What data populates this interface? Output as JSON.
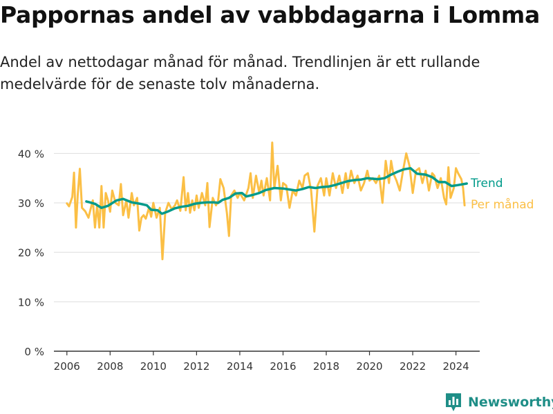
{
  "colors": {
    "trend": "#009a8a",
    "monthly": "#fbbf45",
    "grid": "#dddddd",
    "axis": "#333333",
    "brand": "#1f8e87"
  },
  "brand": {
    "name": "Newsworthy",
    "icon": "bar-chart-logo-icon"
  },
  "chart_data": {
    "type": "line",
    "title": "Pappornas andel av vabbdagarna i Lomma",
    "subtitle": "Andel av nettodagar månad för månad. Trendlinjen är ett rullande medelvärde för de senaste tolv månaderna.",
    "xlim": [
      2005.4,
      2025.1
    ],
    "ylim": [
      0,
      42
    ],
    "x_ticks": [
      2006,
      2008,
      2010,
      2012,
      2014,
      2016,
      2018,
      2020,
      2022,
      2024
    ],
    "x_tick_labels": [
      "2006",
      "2008",
      "2010",
      "2012",
      "2014",
      "2016",
      "2018",
      "2020",
      "2022",
      "2024"
    ],
    "y_ticks": [
      0,
      10,
      20,
      30,
      40
    ],
    "y_tick_labels": [
      "0 %",
      "10 %",
      "20 %",
      "30 %",
      "40 %"
    ],
    "grid": true,
    "series": [
      {
        "name": "Per månad",
        "color": "#fbbf45",
        "points": [
          [
            2006.0,
            29.9
          ],
          [
            2006.1,
            29.3
          ],
          [
            2006.25,
            31.2
          ],
          [
            2006.33,
            36.1
          ],
          [
            2006.42,
            25.0
          ],
          [
            2006.5,
            31.5
          ],
          [
            2006.6,
            36.9
          ],
          [
            2006.7,
            29.0
          ],
          [
            2006.85,
            28.3
          ],
          [
            2007.0,
            27.0
          ],
          [
            2007.1,
            28.8
          ],
          [
            2007.2,
            30.5
          ],
          [
            2007.3,
            25.0
          ],
          [
            2007.4,
            29.5
          ],
          [
            2007.5,
            25.0
          ],
          [
            2007.6,
            33.4
          ],
          [
            2007.7,
            25.0
          ],
          [
            2007.8,
            32.0
          ],
          [
            2007.9,
            30.5
          ],
          [
            2008.0,
            28.2
          ],
          [
            2008.1,
            32.5
          ],
          [
            2008.25,
            30.0
          ],
          [
            2008.4,
            29.5
          ],
          [
            2008.5,
            33.8
          ],
          [
            2008.6,
            27.5
          ],
          [
            2008.75,
            30.5
          ],
          [
            2008.85,
            27.0
          ],
          [
            2009.0,
            32.0
          ],
          [
            2009.1,
            29.5
          ],
          [
            2009.25,
            31.0
          ],
          [
            2009.35,
            24.4
          ],
          [
            2009.45,
            27.0
          ],
          [
            2009.55,
            27.5
          ],
          [
            2009.65,
            26.8
          ],
          [
            2009.8,
            29.0
          ],
          [
            2009.9,
            27.2
          ],
          [
            2010.0,
            30.0
          ],
          [
            2010.15,
            27.0
          ],
          [
            2010.3,
            29.0
          ],
          [
            2010.42,
            18.6
          ],
          [
            2010.55,
            28.0
          ],
          [
            2010.7,
            30.0
          ],
          [
            2010.85,
            28.7
          ],
          [
            2011.0,
            29.5
          ],
          [
            2011.1,
            30.5
          ],
          [
            2011.25,
            28.4
          ],
          [
            2011.4,
            35.2
          ],
          [
            2011.5,
            28.5
          ],
          [
            2011.6,
            32.0
          ],
          [
            2011.7,
            28.0
          ],
          [
            2011.8,
            30.5
          ],
          [
            2011.9,
            28.5
          ],
          [
            2012.0,
            31.5
          ],
          [
            2012.1,
            29.0
          ],
          [
            2012.25,
            32.0
          ],
          [
            2012.4,
            29.5
          ],
          [
            2012.5,
            34.0
          ],
          [
            2012.6,
            25.1
          ],
          [
            2012.75,
            31.0
          ],
          [
            2012.9,
            29.5
          ],
          [
            2013.0,
            30.5
          ],
          [
            2013.1,
            34.8
          ],
          [
            2013.25,
            33.0
          ],
          [
            2013.4,
            28.0
          ],
          [
            2013.5,
            23.3
          ],
          [
            2013.6,
            31.5
          ],
          [
            2013.75,
            32.5
          ],
          [
            2013.9,
            31.0
          ],
          [
            2014.0,
            32.0
          ],
          [
            2014.2,
            30.5
          ],
          [
            2014.4,
            33.0
          ],
          [
            2014.5,
            36.0
          ],
          [
            2014.6,
            31.0
          ],
          [
            2014.75,
            35.5
          ],
          [
            2014.9,
            32.0
          ],
          [
            2015.0,
            34.5
          ],
          [
            2015.1,
            31.5
          ],
          [
            2015.25,
            35.0
          ],
          [
            2015.4,
            30.5
          ],
          [
            2015.5,
            42.2
          ],
          [
            2015.6,
            33.0
          ],
          [
            2015.75,
            37.5
          ],
          [
            2015.9,
            30.5
          ],
          [
            2016.0,
            34.0
          ],
          [
            2016.15,
            33.5
          ],
          [
            2016.3,
            29.0
          ],
          [
            2016.45,
            32.5
          ],
          [
            2016.6,
            31.5
          ],
          [
            2016.75,
            34.5
          ],
          [
            2016.9,
            33.0
          ],
          [
            2017.0,
            35.5
          ],
          [
            2017.15,
            36.0
          ],
          [
            2017.3,
            32.5
          ],
          [
            2017.45,
            24.2
          ],
          [
            2017.6,
            33.5
          ],
          [
            2017.75,
            35.0
          ],
          [
            2017.9,
            31.5
          ],
          [
            2018.0,
            35.0
          ],
          [
            2018.15,
            31.5
          ],
          [
            2018.3,
            36.0
          ],
          [
            2018.45,
            33.0
          ],
          [
            2018.6,
            35.5
          ],
          [
            2018.75,
            32.0
          ],
          [
            2018.9,
            36.0
          ],
          [
            2019.0,
            33.0
          ],
          [
            2019.15,
            36.5
          ],
          [
            2019.3,
            34.0
          ],
          [
            2019.45,
            35.5
          ],
          [
            2019.6,
            32.5
          ],
          [
            2019.75,
            34.0
          ],
          [
            2019.9,
            36.5
          ],
          [
            2020.0,
            34.5
          ],
          [
            2020.15,
            35.0
          ],
          [
            2020.3,
            34.0
          ],
          [
            2020.45,
            35.5
          ],
          [
            2020.6,
            30.0
          ],
          [
            2020.75,
            38.5
          ],
          [
            2020.9,
            34.0
          ],
          [
            2021.0,
            38.5
          ],
          [
            2021.1,
            36.0
          ],
          [
            2021.25,
            34.5
          ],
          [
            2021.4,
            32.5
          ],
          [
            2021.55,
            36.5
          ],
          [
            2021.7,
            40.0
          ],
          [
            2021.85,
            37.5
          ],
          [
            2022.0,
            32.0
          ],
          [
            2022.15,
            36.5
          ],
          [
            2022.3,
            37.0
          ],
          [
            2022.45,
            34.0
          ],
          [
            2022.6,
            36.5
          ],
          [
            2022.75,
            32.5
          ],
          [
            2022.9,
            36.0
          ],
          [
            2023.0,
            35.5
          ],
          [
            2023.15,
            33.0
          ],
          [
            2023.3,
            35.0
          ],
          [
            2023.45,
            31.0
          ],
          [
            2023.55,
            29.7
          ],
          [
            2023.65,
            37.2
          ],
          [
            2023.75,
            31.0
          ],
          [
            2023.9,
            33.0
          ],
          [
            2024.0,
            37.0
          ],
          [
            2024.1,
            36.0
          ],
          [
            2024.25,
            34.8
          ],
          [
            2024.33,
            33.0
          ],
          [
            2024.4,
            29.5
          ]
        ]
      },
      {
        "name": "Trend",
        "color": "#009a8a",
        "points": [
          [
            2006.9,
            30.3
          ],
          [
            2007.3,
            29.8
          ],
          [
            2007.6,
            29.0
          ],
          [
            2007.9,
            29.4
          ],
          [
            2008.3,
            30.5
          ],
          [
            2008.6,
            30.8
          ],
          [
            2009.0,
            30.1
          ],
          [
            2009.4,
            29.8
          ],
          [
            2009.7,
            29.5
          ],
          [
            2009.9,
            28.6
          ],
          [
            2010.2,
            28.5
          ],
          [
            2010.4,
            27.8
          ],
          [
            2010.7,
            28.3
          ],
          [
            2011.0,
            28.9
          ],
          [
            2011.3,
            29.2
          ],
          [
            2011.6,
            29.4
          ],
          [
            2011.9,
            29.8
          ],
          [
            2012.2,
            30.0
          ],
          [
            2012.5,
            30.1
          ],
          [
            2012.8,
            30.1
          ],
          [
            2013.0,
            30.0
          ],
          [
            2013.2,
            30.6
          ],
          [
            2013.5,
            31.0
          ],
          [
            2013.8,
            31.9
          ],
          [
            2014.1,
            32.0
          ],
          [
            2014.3,
            31.3
          ],
          [
            2014.6,
            31.6
          ],
          [
            2014.9,
            32.0
          ],
          [
            2015.2,
            32.6
          ],
          [
            2015.6,
            33.0
          ],
          [
            2016.0,
            32.9
          ],
          [
            2016.3,
            32.7
          ],
          [
            2016.6,
            32.5
          ],
          [
            2016.9,
            32.8
          ],
          [
            2017.2,
            33.2
          ],
          [
            2017.5,
            33.0
          ],
          [
            2017.8,
            33.2
          ],
          [
            2018.1,
            33.3
          ],
          [
            2018.4,
            33.6
          ],
          [
            2018.7,
            34.0
          ],
          [
            2019.0,
            34.4
          ],
          [
            2019.3,
            34.6
          ],
          [
            2019.6,
            34.7
          ],
          [
            2019.9,
            35.0
          ],
          [
            2020.1,
            34.9
          ],
          [
            2020.4,
            34.8
          ],
          [
            2020.7,
            35.0
          ],
          [
            2021.0,
            35.7
          ],
          [
            2021.3,
            36.3
          ],
          [
            2021.6,
            36.8
          ],
          [
            2021.9,
            37.0
          ],
          [
            2022.2,
            35.9
          ],
          [
            2022.6,
            35.7
          ],
          [
            2022.9,
            35.2
          ],
          [
            2023.2,
            34.2
          ],
          [
            2023.5,
            34.2
          ],
          [
            2023.8,
            33.4
          ],
          [
            2024.1,
            33.6
          ],
          [
            2024.5,
            33.9
          ]
        ]
      }
    ],
    "legend": [
      {
        "text": "Trend",
        "color": "#009a8a"
      },
      {
        "text": "Per månad",
        "color": "#fbbf45"
      }
    ]
  }
}
